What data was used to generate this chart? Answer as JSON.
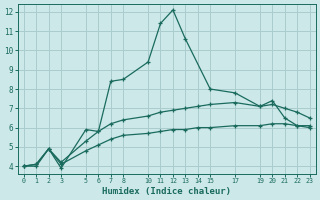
{
  "xlabel": "Humidex (Indice chaleur)",
  "background_color": "#cce8e8",
  "grid_color": "#aacccc",
  "line_color": "#1a6b5e",
  "x_ticks": [
    0,
    1,
    2,
    3,
    5,
    6,
    7,
    8,
    10,
    11,
    12,
    13,
    14,
    15,
    17,
    19,
    20,
    21,
    22,
    23
  ],
  "ylim": [
    3.6,
    12.4
  ],
  "xlim": [
    -0.5,
    23.5
  ],
  "series1_x": [
    0,
    1,
    2,
    3,
    5,
    6,
    7,
    8,
    10,
    11,
    12,
    13,
    15,
    17,
    19,
    20,
    21,
    22,
    23
  ],
  "series1_y": [
    4.0,
    4.0,
    4.9,
    3.9,
    5.9,
    5.8,
    8.4,
    8.5,
    9.4,
    11.4,
    12.1,
    10.6,
    8.0,
    7.8,
    7.1,
    7.4,
    6.5,
    6.1,
    6.1
  ],
  "series2_x": [
    0,
    1,
    2,
    3,
    5,
    6,
    7,
    8,
    10,
    11,
    12,
    13,
    14,
    15,
    17,
    19,
    20,
    21,
    22,
    23
  ],
  "series2_y": [
    4.0,
    4.1,
    4.9,
    4.2,
    5.3,
    5.8,
    6.2,
    6.4,
    6.6,
    6.8,
    6.9,
    7.0,
    7.1,
    7.2,
    7.3,
    7.1,
    7.2,
    7.0,
    6.8,
    6.5
  ],
  "series3_x": [
    0,
    1,
    2,
    3,
    5,
    6,
    7,
    8,
    10,
    11,
    12,
    13,
    14,
    15,
    17,
    19,
    20,
    21,
    22,
    23
  ],
  "series3_y": [
    4.0,
    4.1,
    4.9,
    4.1,
    4.8,
    5.1,
    5.4,
    5.6,
    5.7,
    5.8,
    5.9,
    5.9,
    6.0,
    6.0,
    6.1,
    6.1,
    6.2,
    6.2,
    6.1,
    6.0
  ]
}
